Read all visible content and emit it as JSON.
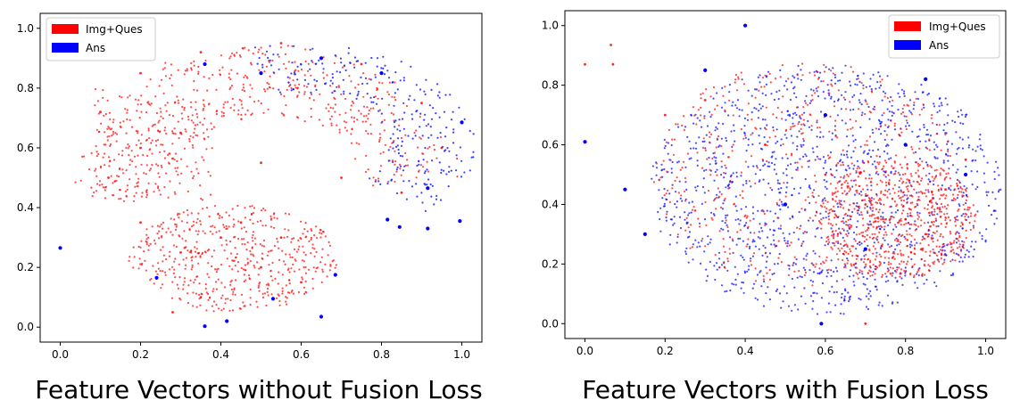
{
  "chart_data": [
    {
      "type": "scatter",
      "caption": "Feature Vectors without Fusion Loss",
      "xlim": [
        -0.05,
        1.05
      ],
      "ylim": [
        -0.05,
        1.05
      ],
      "xticks": [
        "0.0",
        "0.2",
        "0.4",
        "0.6",
        "0.8",
        "1.0"
      ],
      "xtick_values": [
        0.0,
        0.2,
        0.4,
        0.6,
        0.8,
        1.0
      ],
      "yticks": [
        "0.0",
        "0.2",
        "0.4",
        "0.6",
        "0.8",
        "1.0"
      ],
      "ytick_values": [
        0.0,
        0.2,
        0.4,
        0.6,
        0.8,
        1.0
      ],
      "grid": false,
      "legend_placement": "top-left",
      "series": [
        {
          "name": "Img+Ques",
          "color": "#ff0000",
          "distribution": "scattered over two lobes: an upper arc spanning y 0.4-0.95 and a lower cluster spanning y 0.05-0.4",
          "sample_points": [
            [
              0.1,
              0.72
            ],
            [
              0.2,
              0.85
            ],
            [
              0.35,
              0.92
            ],
            [
              0.55,
              0.95
            ],
            [
              0.75,
              0.88
            ],
            [
              0.9,
              0.75
            ],
            [
              0.95,
              0.6
            ],
            [
              0.2,
              0.6
            ],
            [
              0.12,
              0.5
            ],
            [
              0.3,
              0.65
            ],
            [
              0.5,
              0.55
            ],
            [
              0.7,
              0.5
            ],
            [
              0.85,
              0.45
            ],
            [
              0.2,
              0.35
            ],
            [
              0.3,
              0.25
            ],
            [
              0.4,
              0.3
            ],
            [
              0.5,
              0.2
            ],
            [
              0.6,
              0.15
            ],
            [
              0.35,
              0.1
            ],
            [
              0.28,
              0.05
            ],
            [
              0.45,
              0.35
            ],
            [
              0.55,
              0.3
            ]
          ]
        },
        {
          "name": "Ans",
          "color": "#0000ff",
          "distribution": "concentrated in the upper-right arc plus a few dense outlier clusters",
          "sample_points": [
            [
              0.0,
              0.265
            ],
            [
              0.36,
              0.003
            ],
            [
              0.53,
              0.095
            ],
            [
              0.415,
              0.02
            ],
            [
              0.24,
              0.165
            ],
            [
              0.65,
              0.035
            ],
            [
              0.685,
              0.175
            ],
            [
              0.815,
              0.36
            ],
            [
              0.845,
              0.335
            ],
            [
              0.915,
              0.33
            ],
            [
              0.995,
              0.355
            ],
            [
              0.915,
              0.465
            ],
            [
              1.0,
              0.685
            ],
            [
              0.36,
              0.88
            ],
            [
              0.5,
              0.85
            ],
            [
              0.65,
              0.9
            ],
            [
              0.8,
              0.85
            ]
          ]
        }
      ]
    },
    {
      "type": "scatter",
      "caption": "Feature Vectors with Fusion Loss",
      "xlim": [
        -0.05,
        1.05
      ],
      "ylim": [
        -0.05,
        1.05
      ],
      "xticks": [
        "0.0",
        "0.2",
        "0.4",
        "0.6",
        "0.8",
        "1.0"
      ],
      "xtick_values": [
        0.0,
        0.2,
        0.4,
        0.6,
        0.8,
        1.0
      ],
      "yticks": [
        "0.0",
        "0.2",
        "0.4",
        "0.6",
        "0.8",
        "1.0"
      ],
      "ytick_values": [
        0.0,
        0.2,
        0.4,
        0.6,
        0.8,
        1.0
      ],
      "grid": false,
      "legend_placement": "top-right",
      "series": [
        {
          "name": "Img+Ques",
          "color": "#ff0000",
          "distribution": "single ellipse-shaped cloud, red denser toward the lower right (x 0.6-0.95, y 0.2-0.5)",
          "sample_points": [
            [
              0.0,
              0.87
            ],
            [
              0.065,
              0.935
            ],
            [
              0.07,
              0.87
            ],
            [
              0.2,
              0.7
            ],
            [
              0.3,
              0.75
            ],
            [
              0.45,
              0.6
            ],
            [
              0.6,
              0.5
            ],
            [
              0.7,
              0.4
            ],
            [
              0.8,
              0.35
            ],
            [
              0.85,
              0.3
            ],
            [
              0.9,
              0.45
            ],
            [
              0.95,
              0.55
            ],
            [
              0.7,
              0.0
            ]
          ]
        },
        {
          "name": "Ans",
          "color": "#0000ff",
          "distribution": "mixed uniformly with Img+Ques throughout the ellipse (x 0.1-1.0, y 0.0-1.0)",
          "sample_points": [
            [
              0.0,
              0.61
            ],
            [
              0.1,
              0.45
            ],
            [
              0.15,
              0.3
            ],
            [
              0.3,
              0.85
            ],
            [
              0.4,
              1.0
            ],
            [
              0.5,
              0.4
            ],
            [
              0.6,
              0.7
            ],
            [
              0.7,
              0.25
            ],
            [
              0.8,
              0.6
            ],
            [
              0.85,
              0.82
            ],
            [
              0.95,
              0.5
            ],
            [
              0.59,
              0.0
            ]
          ]
        }
      ]
    }
  ]
}
